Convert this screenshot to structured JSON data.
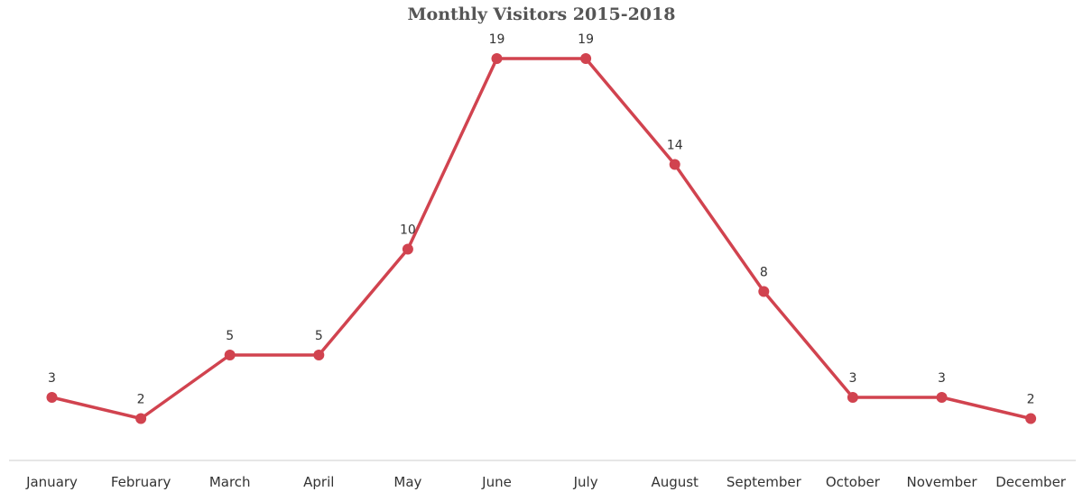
{
  "chart_data": {
    "type": "line",
    "title": "Monthly Visitors 2015-2018",
    "xlabel": "",
    "ylabel": "",
    "categories": [
      "January",
      "February",
      "March",
      "April",
      "May",
      "June",
      "July",
      "August",
      "September",
      "October",
      "November",
      "December"
    ],
    "series": [
      {
        "values": [
          3,
          2,
          5,
          5,
          10,
          19,
          19,
          14,
          8,
          3,
          3,
          2
        ],
        "color": "#d1434f"
      }
    ],
    "ylim": [
      0,
      20
    ],
    "grid": false,
    "legend": "none",
    "data_labels": true,
    "axis_color": "#cccccc"
  }
}
